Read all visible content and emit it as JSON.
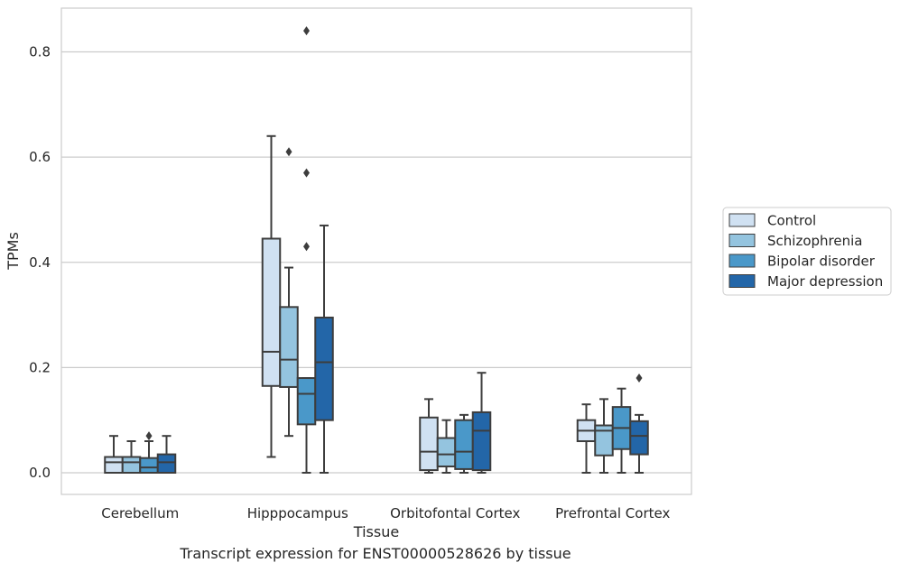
{
  "caption": "Transcript expression for ENST00000528626 by tissue",
  "chart_data": {
    "type": "box",
    "xlabel": "Tissue",
    "ylabel": "TPMs",
    "ylim": [
      -0.04,
      0.885
    ],
    "yticks": [
      "0.0",
      "0.2",
      "0.4",
      "0.6",
      "0.8"
    ],
    "ytick_values": [
      0,
      0.2,
      0.4,
      0.6,
      0.8
    ],
    "grid": "horizontal",
    "legend_position": "right",
    "categories": [
      "Cerebellum",
      "Hipppocampus",
      "Orbitofontal Cortex",
      "Prefrontal Cortex"
    ],
    "series": [
      {
        "name": "Control",
        "color": "#d0e1f2",
        "boxes": [
          {
            "whislo": 0,
            "q1": 0,
            "med": 0.02,
            "q3": 0.03,
            "whishi": 0.07,
            "fliers": []
          },
          {
            "whislo": 0.03,
            "q1": 0.165,
            "med": 0.23,
            "q3": 0.445,
            "whishi": 0.64,
            "fliers": []
          },
          {
            "whislo": 0,
            "q1": 0.005,
            "med": 0.04,
            "q3": 0.105,
            "whishi": 0.14,
            "fliers": []
          },
          {
            "whislo": 0,
            "q1": 0.06,
            "med": 0.08,
            "q3": 0.1,
            "whishi": 0.13,
            "fliers": []
          }
        ]
      },
      {
        "name": "Schizophrenia",
        "color": "#94c4df",
        "boxes": [
          {
            "whislo": 0,
            "q1": 0,
            "med": 0.02,
            "q3": 0.03,
            "whishi": 0.06,
            "fliers": []
          },
          {
            "whislo": 0.07,
            "q1": 0.163,
            "med": 0.215,
            "q3": 0.315,
            "whishi": 0.39,
            "fliers": [
              0.61
            ]
          },
          {
            "whislo": 0,
            "q1": 0.012,
            "med": 0.035,
            "q3": 0.066,
            "whishi": 0.1,
            "fliers": []
          },
          {
            "whislo": 0,
            "q1": 0.033,
            "med": 0.08,
            "q3": 0.09,
            "whishi": 0.14,
            "fliers": []
          }
        ]
      },
      {
        "name": "Bipolar disorder",
        "color": "#4a98c9",
        "boxes": [
          {
            "whislo": 0,
            "q1": 0,
            "med": 0.01,
            "q3": 0.028,
            "whishi": 0.06,
            "fliers": [
              0.07
            ]
          },
          {
            "whislo": 0,
            "q1": 0.092,
            "med": 0.15,
            "q3": 0.18,
            "whishi": 0.18,
            "fliers": [
              0.84,
              0.57,
              0.43
            ]
          },
          {
            "whislo": 0,
            "q1": 0.007,
            "med": 0.04,
            "q3": 0.1,
            "whishi": 0.11,
            "fliers": []
          },
          {
            "whislo": 0,
            "q1": 0.045,
            "med": 0.085,
            "q3": 0.125,
            "whishi": 0.16,
            "fliers": []
          }
        ]
      },
      {
        "name": "Major depression",
        "color": "#2366a8",
        "boxes": [
          {
            "whislo": 0,
            "q1": 0,
            "med": 0.02,
            "q3": 0.035,
            "whishi": 0.07,
            "fliers": []
          },
          {
            "whislo": 0,
            "q1": 0.1,
            "med": 0.21,
            "q3": 0.295,
            "whishi": 0.47,
            "fliers": []
          },
          {
            "whislo": 0,
            "q1": 0.005,
            "med": 0.08,
            "q3": 0.115,
            "whishi": 0.19,
            "fliers": []
          },
          {
            "whislo": 0,
            "q1": 0.035,
            "med": 0.07,
            "q3": 0.098,
            "whishi": 0.11,
            "fliers": [
              0.18
            ]
          }
        ]
      }
    ]
  }
}
